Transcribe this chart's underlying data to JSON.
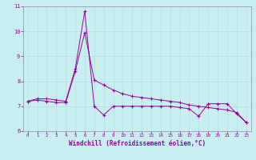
{
  "x": [
    0,
    1,
    2,
    3,
    4,
    5,
    6,
    7,
    8,
    9,
    10,
    11,
    12,
    13,
    14,
    15,
    16,
    17,
    18,
    19,
    20,
    21,
    22,
    23
  ],
  "line1": [
    7.2,
    7.3,
    7.3,
    7.25,
    7.2,
    8.5,
    10.8,
    7.0,
    6.65,
    7.0,
    7.0,
    7.0,
    7.0,
    7.0,
    7.0,
    7.0,
    6.95,
    6.9,
    6.6,
    7.1,
    7.1,
    7.1,
    6.7,
    6.35
  ],
  "line2": [
    7.2,
    7.25,
    7.2,
    7.15,
    7.15,
    8.4,
    9.95,
    8.05,
    7.85,
    7.65,
    7.5,
    7.4,
    7.35,
    7.3,
    7.25,
    7.2,
    7.15,
    7.05,
    7.0,
    6.95,
    6.9,
    6.85,
    6.75,
    6.35
  ],
  "ylim": [
    6,
    11
  ],
  "xlim": [
    -0.5,
    23.5
  ],
  "yticks": [
    6,
    7,
    8,
    9,
    10,
    11
  ],
  "xticks": [
    0,
    1,
    2,
    3,
    4,
    5,
    6,
    7,
    8,
    9,
    10,
    11,
    12,
    13,
    14,
    15,
    16,
    17,
    18,
    19,
    20,
    21,
    22,
    23
  ],
  "xlabel": "Windchill (Refroidissement éolien,°C)",
  "bg_color": "#c8eef0",
  "line_color": "#990099",
  "grid_color": "#b8dde0",
  "axis_color": "#8888aa",
  "tick_color": "#990099"
}
